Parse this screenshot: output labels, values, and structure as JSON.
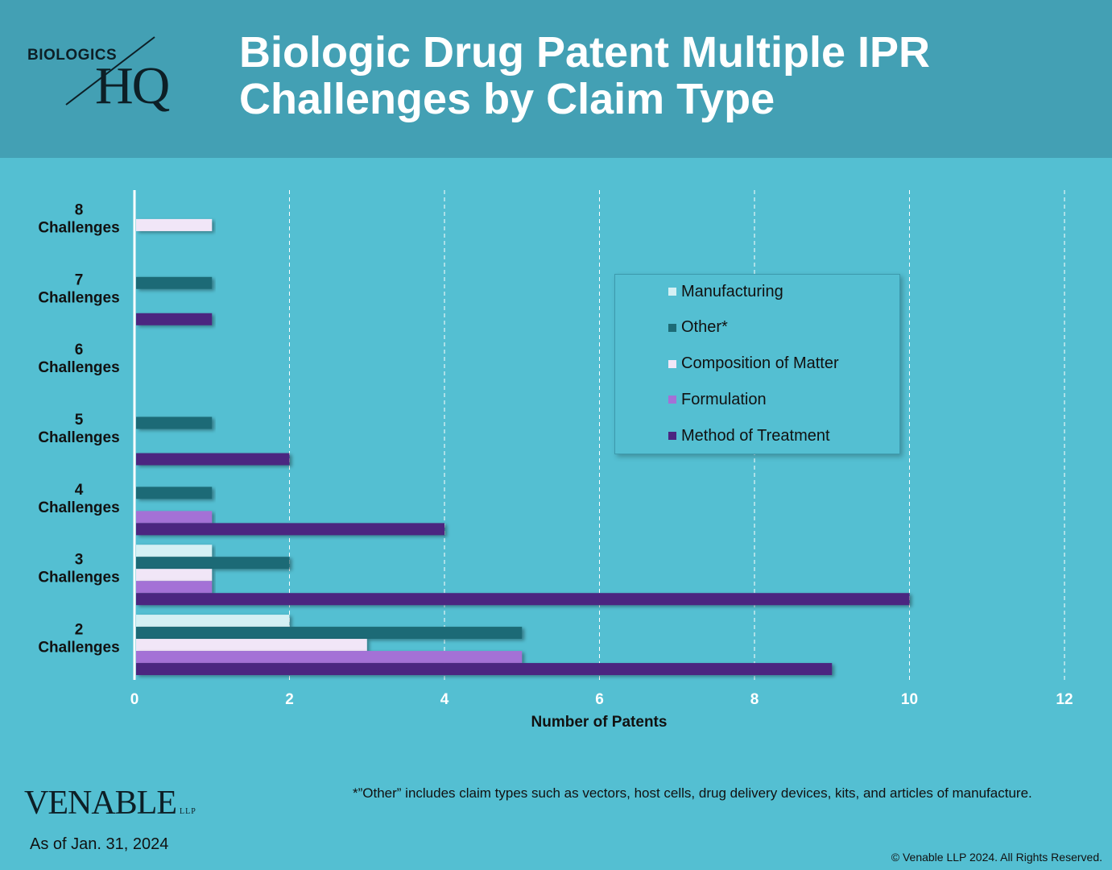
{
  "header": {
    "logo_top": "BIOLOGICS",
    "logo_main": "HQ",
    "title_line1": "Biologic Drug Patent Multiple IPR",
    "title_line2": "Challenges by Claim Type"
  },
  "colors": {
    "background": "#54bfd2",
    "header": "#43a0b4",
    "Manufacturing": "#d4f0f4",
    "Other*": "#1d6b76",
    "Composition of Matter": "#f1e6f7",
    "Formulation": "#a471d6",
    "Method of Treatment": "#4b2580"
  },
  "chart_data": {
    "type": "bar",
    "orientation": "horizontal",
    "categories": [
      "8 Challenges",
      "7 Challenges",
      "6 Challenges",
      "5 Challenges",
      "4 Challenges",
      "3 Challenges",
      "2 Challenges"
    ],
    "category_lines": [
      [
        "8",
        "Challenges"
      ],
      [
        "7",
        "Challenges"
      ],
      [
        "6",
        "Challenges"
      ],
      [
        "5",
        "Challenges"
      ],
      [
        "4",
        "Challenges"
      ],
      [
        "3",
        "Challenges"
      ],
      [
        "2",
        "Challenges"
      ]
    ],
    "series": [
      {
        "name": "Manufacturing",
        "values": [
          0,
          0,
          0,
          0,
          0,
          1,
          2
        ]
      },
      {
        "name": "Other*",
        "values": [
          0,
          1,
          0,
          1,
          1,
          2,
          5
        ]
      },
      {
        "name": "Composition of Matter",
        "values": [
          1,
          0,
          0,
          0,
          0,
          1,
          3
        ]
      },
      {
        "name": "Formulation",
        "values": [
          0,
          0,
          0,
          0,
          1,
          1,
          5
        ]
      },
      {
        "name": "Method of Treatment",
        "values": [
          0,
          1,
          0,
          2,
          4,
          10,
          9
        ]
      }
    ],
    "xlabel": "Number of Patents",
    "ylabel": "",
    "xlim": [
      0,
      12
    ],
    "xticks": [
      0,
      2,
      4,
      6,
      8,
      10,
      12
    ],
    "grid": true,
    "legend_position": "right"
  },
  "footnote": "*”Other” includes claim types such as vectors, host cells, drug delivery devices, kits, and articles of manufacture.",
  "footer": {
    "brand": "VENABLE",
    "brand_suffix": "LLP",
    "as_of": "As of Jan. 31, 2024",
    "copyright": "© Venable LLP 2024. All Rights Reserved."
  }
}
